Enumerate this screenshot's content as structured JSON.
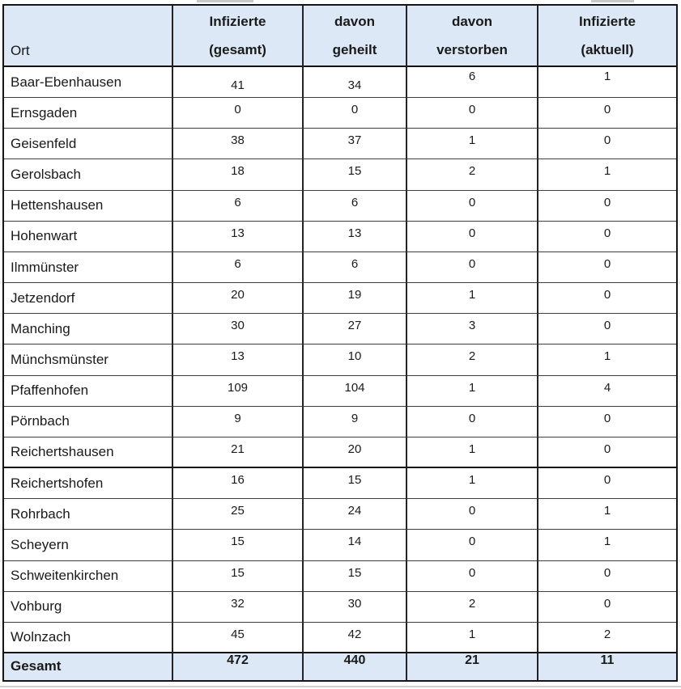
{
  "colors": {
    "header_bg": "#dce8f5",
    "border": "#151515",
    "text": "#1a1a1a"
  },
  "table": {
    "header": {
      "ort": "Ort",
      "cols": [
        {
          "line1": "Infizierte",
          "line2": "(gesamt)"
        },
        {
          "line1": "davon",
          "line2": "geheilt"
        },
        {
          "line1": "davon",
          "line2": "verstorben"
        },
        {
          "line1": "Infizierte",
          "line2": "(aktuell)"
        }
      ]
    },
    "rows": [
      {
        "ort": "Baar-Ebenhausen",
        "gesamt": "41",
        "geheilt": "34",
        "verstorben": "6",
        "aktuell": "1"
      },
      {
        "ort": "Ernsgaden",
        "gesamt": "0",
        "geheilt": "0",
        "verstorben": "0",
        "aktuell": "0"
      },
      {
        "ort": "Geisenfeld",
        "gesamt": "38",
        "geheilt": "37",
        "verstorben": "1",
        "aktuell": "0"
      },
      {
        "ort": "Gerolsbach",
        "gesamt": "18",
        "geheilt": "15",
        "verstorben": "2",
        "aktuell": "1"
      },
      {
        "ort": "Hettenshausen",
        "gesamt": "6",
        "geheilt": "6",
        "verstorben": "0",
        "aktuell": "0"
      },
      {
        "ort": "Hohenwart",
        "gesamt": "13",
        "geheilt": "13",
        "verstorben": "0",
        "aktuell": "0"
      },
      {
        "ort": "Ilmmünster",
        "gesamt": "6",
        "geheilt": "6",
        "verstorben": "0",
        "aktuell": "0"
      },
      {
        "ort": "Jetzendorf",
        "gesamt": "20",
        "geheilt": "19",
        "verstorben": "1",
        "aktuell": "0"
      },
      {
        "ort": "Manching",
        "gesamt": "30",
        "geheilt": "27",
        "verstorben": "3",
        "aktuell": "0"
      },
      {
        "ort": "Münchsmünster",
        "gesamt": "13",
        "geheilt": "10",
        "verstorben": "2",
        "aktuell": "1"
      },
      {
        "ort": "Pfaffenhofen",
        "gesamt": "109",
        "geheilt": "104",
        "verstorben": "1",
        "aktuell": "4"
      },
      {
        "ort": "Pörnbach",
        "gesamt": "9",
        "geheilt": "9",
        "verstorben": "0",
        "aktuell": "0"
      },
      {
        "ort": "Reichertshausen",
        "gesamt": "21",
        "geheilt": "20",
        "verstorben": "1",
        "aktuell": "0",
        "divider_after": true
      },
      {
        "ort": "Reichertshofen",
        "gesamt": "16",
        "geheilt": "15",
        "verstorben": "1",
        "aktuell": "0"
      },
      {
        "ort": "Rohrbach",
        "gesamt": "25",
        "geheilt": "24",
        "verstorben": "0",
        "aktuell": "1"
      },
      {
        "ort": "Scheyern",
        "gesamt": "15",
        "geheilt": "14",
        "verstorben": "0",
        "aktuell": "1"
      },
      {
        "ort": "Schweitenkirchen",
        "gesamt": "15",
        "geheilt": "15",
        "verstorben": "0",
        "aktuell": "0"
      },
      {
        "ort": "Vohburg",
        "gesamt": "32",
        "geheilt": "30",
        "verstorben": "2",
        "aktuell": "0"
      },
      {
        "ort": "Wolnzach",
        "gesamt": "45",
        "geheilt": "42",
        "verstorben": "1",
        "aktuell": "2"
      }
    ],
    "footer": {
      "label": "Gesamt",
      "gesamt": "472",
      "geheilt": "440",
      "verstorben": "21",
      "aktuell": "11"
    }
  }
}
